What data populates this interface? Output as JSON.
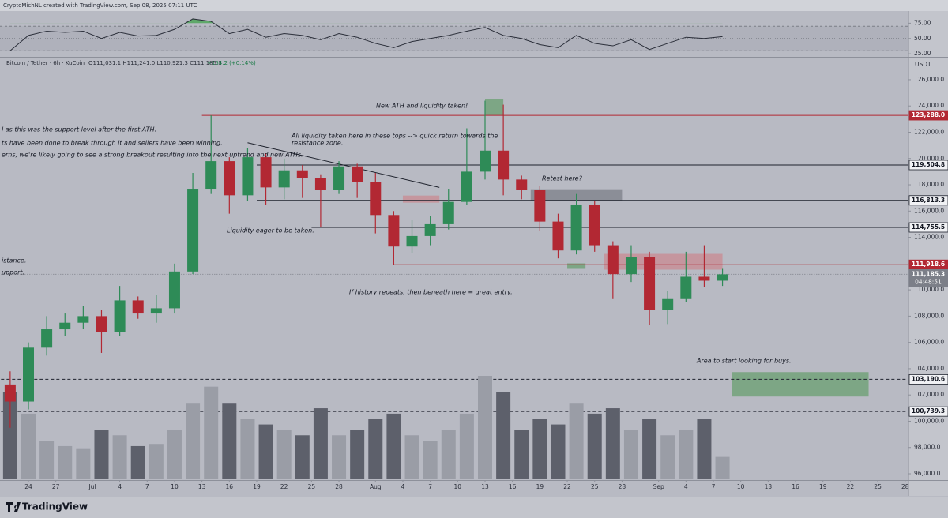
{
  "header": "CryptoMichNL created with TradingView.com, Sep 08, 2025 07:11 UTC",
  "brand": "TradingView",
  "chart_data": {
    "type": "candlestick",
    "symbol": "Bitcoin / Tether · 6h · KuCoin",
    "ohlc": "O111,031.1 H111,241.0 L110,921.3 C111,185.3",
    "change": "+154.2 (+0.14%)",
    "currency": "USDT",
    "countdown": "04:48:51",
    "up_color": "#2e8b57",
    "down_color": "#b22833",
    "x": [
      "2025-06-21",
      "2025-06-23",
      "2025-06-25",
      "2025-06-27",
      "2025-06-29",
      "2025-07-01",
      "2025-07-03",
      "2025-07-05",
      "2025-07-07",
      "2025-07-09",
      "2025-07-11",
      "2025-07-13",
      "2025-07-15",
      "2025-07-17",
      "2025-07-19",
      "2025-07-21",
      "2025-07-23",
      "2025-07-25",
      "2025-07-27",
      "2025-07-29",
      "2025-07-31",
      "2025-08-02",
      "2025-08-04",
      "2025-08-06",
      "2025-08-08",
      "2025-08-10",
      "2025-08-12",
      "2025-08-14",
      "2025-08-16",
      "2025-08-18",
      "2025-08-20",
      "2025-08-22",
      "2025-08-24",
      "2025-08-26",
      "2025-08-28",
      "2025-08-30",
      "2025-09-01",
      "2025-09-03",
      "2025-09-05",
      "2025-09-07"
    ],
    "open": [
      102800,
      101500,
      105600,
      107000,
      107500,
      108000,
      106800,
      109200,
      108200,
      108600,
      111400,
      117700,
      119800,
      117200,
      120100,
      117800,
      119100,
      118500,
      117600,
      119400,
      118200,
      115700,
      113300,
      114100,
      115000,
      116700,
      119000,
      120600,
      118400,
      117600,
      115200,
      113000,
      116500,
      113400,
      111200,
      112500,
      108500,
      109300,
      111000,
      110700
    ],
    "high": [
      103800,
      106000,
      108000,
      108200,
      108800,
      108500,
      110300,
      109500,
      109600,
      112000,
      118900,
      123288,
      120100,
      120800,
      120400,
      120000,
      119500,
      118800,
      119800,
      119600,
      118900,
      116000,
      115300,
      115600,
      117700,
      122300,
      124400,
      124100,
      118700,
      117900,
      115800,
      117300,
      116800,
      113700,
      113400,
      112900,
      109900,
      112900,
      113400,
      111600
    ],
    "low": [
      99500,
      100900,
      105000,
      106500,
      107000,
      105200,
      106500,
      107800,
      107500,
      108200,
      111200,
      117300,
      115800,
      116800,
      116500,
      116900,
      117000,
      114800,
      117300,
      117000,
      114300,
      111900,
      112800,
      113400,
      114600,
      116500,
      118400,
      117200,
      116900,
      114500,
      112400,
      112700,
      112900,
      109300,
      110600,
      107300,
      107400,
      109100,
      110200,
      110300
    ],
    "close": [
      101500,
      105600,
      107000,
      107500,
      108000,
      106800,
      109200,
      108200,
      108600,
      111400,
      117700,
      119800,
      117200,
      120100,
      117800,
      119100,
      118500,
      117600,
      119400,
      118200,
      115700,
      113300,
      114100,
      115000,
      116700,
      119000,
      120600,
      118400,
      117600,
      115200,
      113000,
      116500,
      113400,
      111200,
      112500,
      108500,
      109300,
      111000,
      110700,
      111185.3
    ],
    "volume": [
      80,
      60,
      35,
      30,
      28,
      45,
      40,
      30,
      32,
      45,
      70,
      85,
      70,
      55,
      50,
      45,
      40,
      65,
      40,
      45,
      55,
      60,
      40,
      35,
      45,
      60,
      95,
      80,
      45,
      55,
      50,
      70,
      60,
      65,
      45,
      55,
      40,
      45,
      55,
      20
    ],
    "volume_up_color": "#9a9da6",
    "volume_down_color": "#5d606b",
    "rsi": [
      30,
      55,
      62,
      60,
      62,
      50,
      60,
      54,
      55,
      65,
      82,
      78,
      58,
      65,
      52,
      58,
      55,
      48,
      58,
      52,
      42,
      35,
      45,
      50,
      55,
      62,
      68,
      55,
      50,
      40,
      35,
      55,
      42,
      38,
      48,
      32,
      42,
      52,
      50,
      53
    ],
    "rsi_color": "#2a2e39",
    "rsi_overbought_color": "#5fa86a",
    "rsi_ylim": [
      20,
      100
    ],
    "rsi_yticks": [
      {
        "value": 75,
        "label": "75.00"
      },
      {
        "value": 50,
        "label": "50.00"
      },
      {
        "value": 25,
        "label": "25.00"
      }
    ],
    "ylim": [
      95520,
      127680
    ],
    "yticks": [
      {
        "value": 96000,
        "label": "96,000.0"
      },
      {
        "value": 98000,
        "label": "98,000.0"
      },
      {
        "value": 100000,
        "label": "100,000.0"
      },
      {
        "value": 102000,
        "label": "102,000.0"
      },
      {
        "value": 104000,
        "label": "104,000.0"
      },
      {
        "value": 106000,
        "label": "106,000.0"
      },
      {
        "value": 108000,
        "label": "108,000.0"
      },
      {
        "value": 110000,
        "label": "110,000.0"
      },
      {
        "value": 112000,
        "label": "112,000.0"
      },
      {
        "value": 114000,
        "label": "114,000.0"
      },
      {
        "value": 116000,
        "label": "116,000.0"
      },
      {
        "value": 118000,
        "label": "118,000.0"
      },
      {
        "value": 120000,
        "label": "120,000.0"
      },
      {
        "value": 122000,
        "label": "122,000.0"
      },
      {
        "value": 124000,
        "label": "124,000.0"
      },
      {
        "value": 126000,
        "label": "126,000.0"
      }
    ],
    "xticks": [
      {
        "value": "2025-06-24",
        "label": "24"
      },
      {
        "value": "2025-06-27",
        "label": "27"
      },
      {
        "value": "2025-07-01",
        "label": "Jul"
      },
      {
        "value": "2025-07-04",
        "label": "4"
      },
      {
        "value": "2025-07-07",
        "label": "7"
      },
      {
        "value": "2025-07-10",
        "label": "10"
      },
      {
        "value": "2025-07-13",
        "label": "13"
      },
      {
        "value": "2025-07-16",
        "label": "16"
      },
      {
        "value": "2025-07-19",
        "label": "19"
      },
      {
        "value": "2025-07-22",
        "label": "22"
      },
      {
        "value": "2025-07-25",
        "label": "25"
      },
      {
        "value": "2025-07-28",
        "label": "28"
      },
      {
        "value": "2025-08-01",
        "label": "Aug"
      },
      {
        "value": "2025-08-04",
        "label": "4"
      },
      {
        "value": "2025-08-07",
        "label": "7"
      },
      {
        "value": "2025-08-10",
        "label": "10"
      },
      {
        "value": "2025-08-13",
        "label": "13"
      },
      {
        "value": "2025-08-16",
        "label": "16"
      },
      {
        "value": "2025-08-19",
        "label": "19"
      },
      {
        "value": "2025-08-22",
        "label": "22"
      },
      {
        "value": "2025-08-25",
        "label": "25"
      },
      {
        "value": "2025-08-28",
        "label": "28"
      },
      {
        "value": "2025-09-01",
        "label": "Sep"
      },
      {
        "value": "2025-09-04",
        "label": "4"
      },
      {
        "value": "2025-09-07",
        "label": "7"
      },
      {
        "value": "2025-09-10",
        "label": "10"
      },
      {
        "value": "2025-09-13",
        "label": "13"
      },
      {
        "value": "2025-09-16",
        "label": "16"
      },
      {
        "value": "2025-09-19",
        "label": "19"
      },
      {
        "value": "2025-09-22",
        "label": "22"
      },
      {
        "value": "2025-09-25",
        "label": "25"
      },
      {
        "value": "2025-09-28",
        "label": "28"
      }
    ],
    "levels": [
      {
        "value": 123288,
        "label": "123,288.0",
        "start": "2025-07-13",
        "color": "#b22833",
        "style": "solid"
      },
      {
        "value": 119504.8,
        "label": "119,504.8",
        "start": "2025-07-19",
        "color": "#1e222d",
        "style": "solid"
      },
      {
        "value": 116813.3,
        "label": "116,813.3",
        "start": "2025-07-19",
        "color": "#1e222d",
        "style": "solid"
      },
      {
        "value": 114755.5,
        "label": "114,755.5",
        "start": "2025-07-25",
        "color": "#1e222d",
        "style": "solid"
      },
      {
        "value": 111918.6,
        "label": "111,918.6",
        "start": "2025-08-03",
        "color": "#b22833",
        "style": "solid"
      },
      {
        "value": 111185.3,
        "label": "111,185.3",
        "start": "2025-06-21",
        "color": "#7c7f88",
        "style": "dotted"
      },
      {
        "value": 103190.6,
        "label": "103,190.6",
        "start": "2025-06-21",
        "color": "#1e222d",
        "style": "dashed"
      },
      {
        "value": 100739.3,
        "label": "100,739.3",
        "start": "2025-06-21",
        "color": "#1e222d",
        "style": "dashed"
      }
    ],
    "zones": [
      {
        "from": "2025-08-13",
        "to": "2025-08-15",
        "top": 124500,
        "bottom": 123300,
        "color": "#6a9f70"
      },
      {
        "from": "2025-08-04",
        "to": "2025-08-08",
        "top": 117180,
        "bottom": 116640,
        "color": "#c98a92"
      },
      {
        "from": "2025-08-18",
        "to": "2025-08-28",
        "top": 117660,
        "bottom": 116820,
        "color": "#7c7f88"
      },
      {
        "from": "2025-08-22",
        "to": "2025-08-24",
        "top": 112020,
        "bottom": 111600,
        "color": "#6a9f70"
      },
      {
        "from": "2025-08-26",
        "to": "2025-09-08",
        "top": 112740,
        "bottom": 111540,
        "color": "#c98a92"
      },
      {
        "from": "2025-09-09",
        "to": "2025-09-24",
        "top": 103740,
        "bottom": 101880,
        "color": "#6a9f70"
      }
    ],
    "trendlines": [
      {
        "from": "2025-07-18",
        "from_value": 121200,
        "to": "2025-08-08",
        "to_value": 117800,
        "color": "#1e222d"
      }
    ],
    "annotations": [
      "New ATH and liquidity taken!",
      "All liquidity taken here in these tops --> quick return towards the",
      "resistance zone.",
      "Retest here?",
      "Liquidity eager to be taken.",
      "If history repeats, then beneath here = great entry.",
      "Area to start looking for buys.",
      "l as this was the support level after the first ATH.",
      "ts have been done to break through it and sellers have been winning.",
      "erns, we're likely going to see a strong breakout resulting into the next uptrend and new ATHs.",
      "istance.",
      "upport."
    ]
  }
}
